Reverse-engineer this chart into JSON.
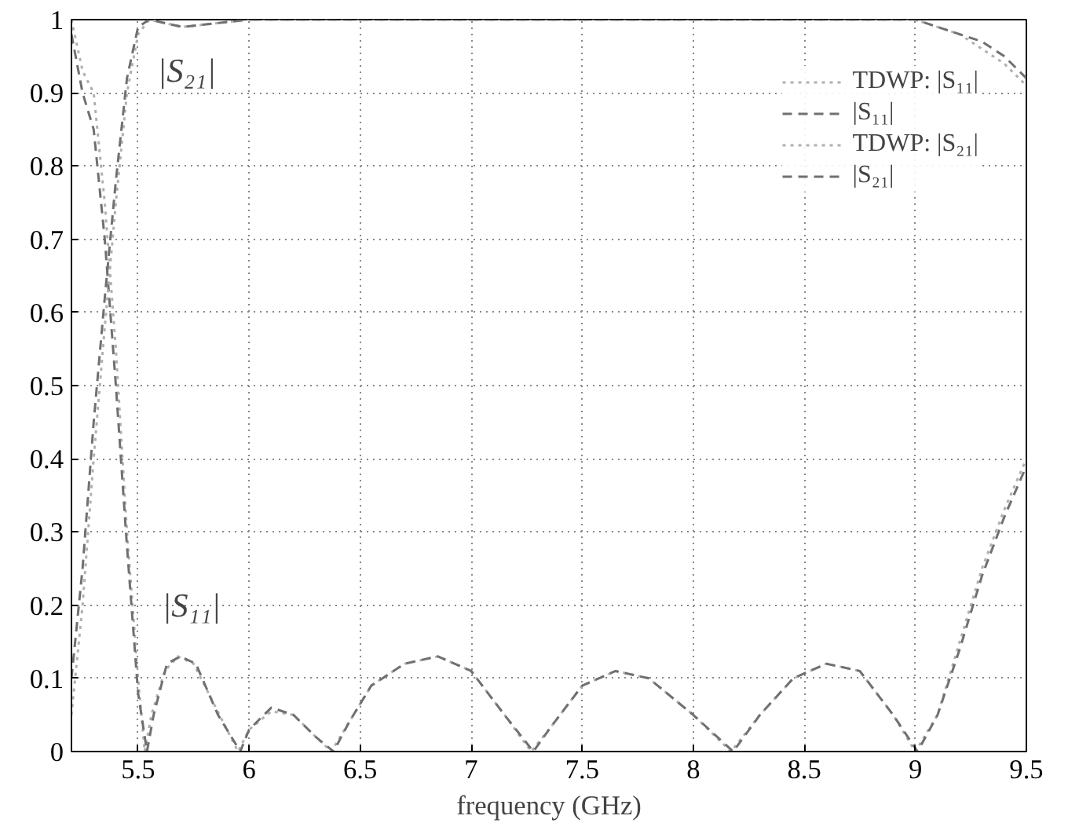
{
  "chart_data": {
    "type": "line",
    "xlabel": "frequency (GHz)",
    "xlim": [
      5.2,
      9.5
    ],
    "ylim": [
      0,
      1
    ],
    "xticks": [
      5.5,
      6,
      6.5,
      7,
      7.5,
      8,
      8.5,
      9,
      9.5
    ],
    "yticks": [
      0,
      0.1,
      0.2,
      0.3,
      0.4,
      0.5,
      0.6,
      0.7,
      0.8,
      0.9,
      1
    ],
    "grid": true,
    "legend": "top right",
    "annotations": [
      "|S₂₁|",
      "|S₁₁|"
    ],
    "series": [
      {
        "name": "TDWP: |S₁₁|",
        "color": "#b0b0b0",
        "line_style": "dotted",
        "x": [
          5.2,
          5.25,
          5.3,
          5.35,
          5.4,
          5.45,
          5.5,
          5.53,
          5.56,
          5.62,
          5.68,
          5.75,
          5.85,
          5.95,
          6.0,
          6.1,
          6.2,
          6.3,
          6.37,
          6.45,
          6.55,
          6.7,
          6.85,
          7.0,
          7.15,
          7.27,
          7.35,
          7.5,
          7.65,
          7.8,
          8.0,
          8.17,
          8.3,
          8.45,
          8.6,
          8.75,
          8.9,
          9.0,
          9.1,
          9.2,
          9.3,
          9.4,
          9.5
        ],
        "values": [
          1.0,
          0.93,
          0.9,
          0.75,
          0.55,
          0.3,
          0.1,
          0.0,
          0.05,
          0.11,
          0.13,
          0.12,
          0.06,
          0.0,
          0.03,
          0.055,
          0.05,
          0.02,
          0.0,
          0.04,
          0.09,
          0.12,
          0.13,
          0.11,
          0.05,
          0.0,
          0.03,
          0.09,
          0.11,
          0.1,
          0.05,
          0.0,
          0.05,
          0.1,
          0.12,
          0.11,
          0.05,
          0.0,
          0.05,
          0.15,
          0.25,
          0.33,
          0.4
        ]
      },
      {
        "name": "|S₁₁|",
        "color": "#707070",
        "line_style": "dashed",
        "x": [
          5.2,
          5.25,
          5.3,
          5.35,
          5.4,
          5.45,
          5.5,
          5.54,
          5.57,
          5.63,
          5.69,
          5.76,
          5.86,
          5.96,
          6.0,
          6.1,
          6.2,
          6.3,
          6.38,
          6.45,
          6.55,
          6.7,
          6.85,
          7.0,
          7.15,
          7.28,
          7.35,
          7.5,
          7.65,
          7.8,
          8.0,
          8.18,
          8.3,
          8.45,
          8.6,
          8.75,
          8.9,
          9.01,
          9.1,
          9.2,
          9.3,
          9.4,
          9.5
        ],
        "values": [
          0.98,
          0.9,
          0.85,
          0.7,
          0.5,
          0.28,
          0.08,
          0.0,
          0.05,
          0.12,
          0.13,
          0.12,
          0.05,
          0.0,
          0.03,
          0.06,
          0.05,
          0.02,
          0.0,
          0.04,
          0.09,
          0.12,
          0.13,
          0.11,
          0.05,
          0.0,
          0.03,
          0.09,
          0.11,
          0.1,
          0.05,
          0.0,
          0.05,
          0.1,
          0.12,
          0.11,
          0.05,
          0.0,
          0.05,
          0.14,
          0.24,
          0.32,
          0.39
        ]
      },
      {
        "name": "TDWP: |S₂₁|",
        "color": "#b0b0b0",
        "line_style": "dotted",
        "x": [
          5.2,
          5.25,
          5.3,
          5.35,
          5.4,
          5.45,
          5.5,
          5.55,
          5.7,
          6.0,
          7.0,
          8.0,
          9.0,
          9.1,
          9.2,
          9.3,
          9.4,
          9.5
        ],
        "values": [
          0.05,
          0.2,
          0.4,
          0.58,
          0.75,
          0.9,
          0.98,
          1.0,
          0.99,
          1.0,
          1.0,
          1.0,
          1.0,
          0.99,
          0.98,
          0.96,
          0.94,
          0.91
        ]
      },
      {
        "name": "|S₂₁|",
        "color": "#707070",
        "line_style": "dashed",
        "x": [
          5.2,
          5.25,
          5.3,
          5.35,
          5.4,
          5.45,
          5.5,
          5.55,
          5.7,
          6.0,
          7.0,
          8.0,
          9.0,
          9.1,
          9.2,
          9.3,
          9.4,
          9.5
        ],
        "values": [
          0.1,
          0.25,
          0.45,
          0.62,
          0.78,
          0.92,
          0.99,
          1.0,
          0.99,
          1.0,
          1.0,
          1.0,
          1.0,
          0.99,
          0.98,
          0.97,
          0.95,
          0.92
        ]
      }
    ]
  }
}
